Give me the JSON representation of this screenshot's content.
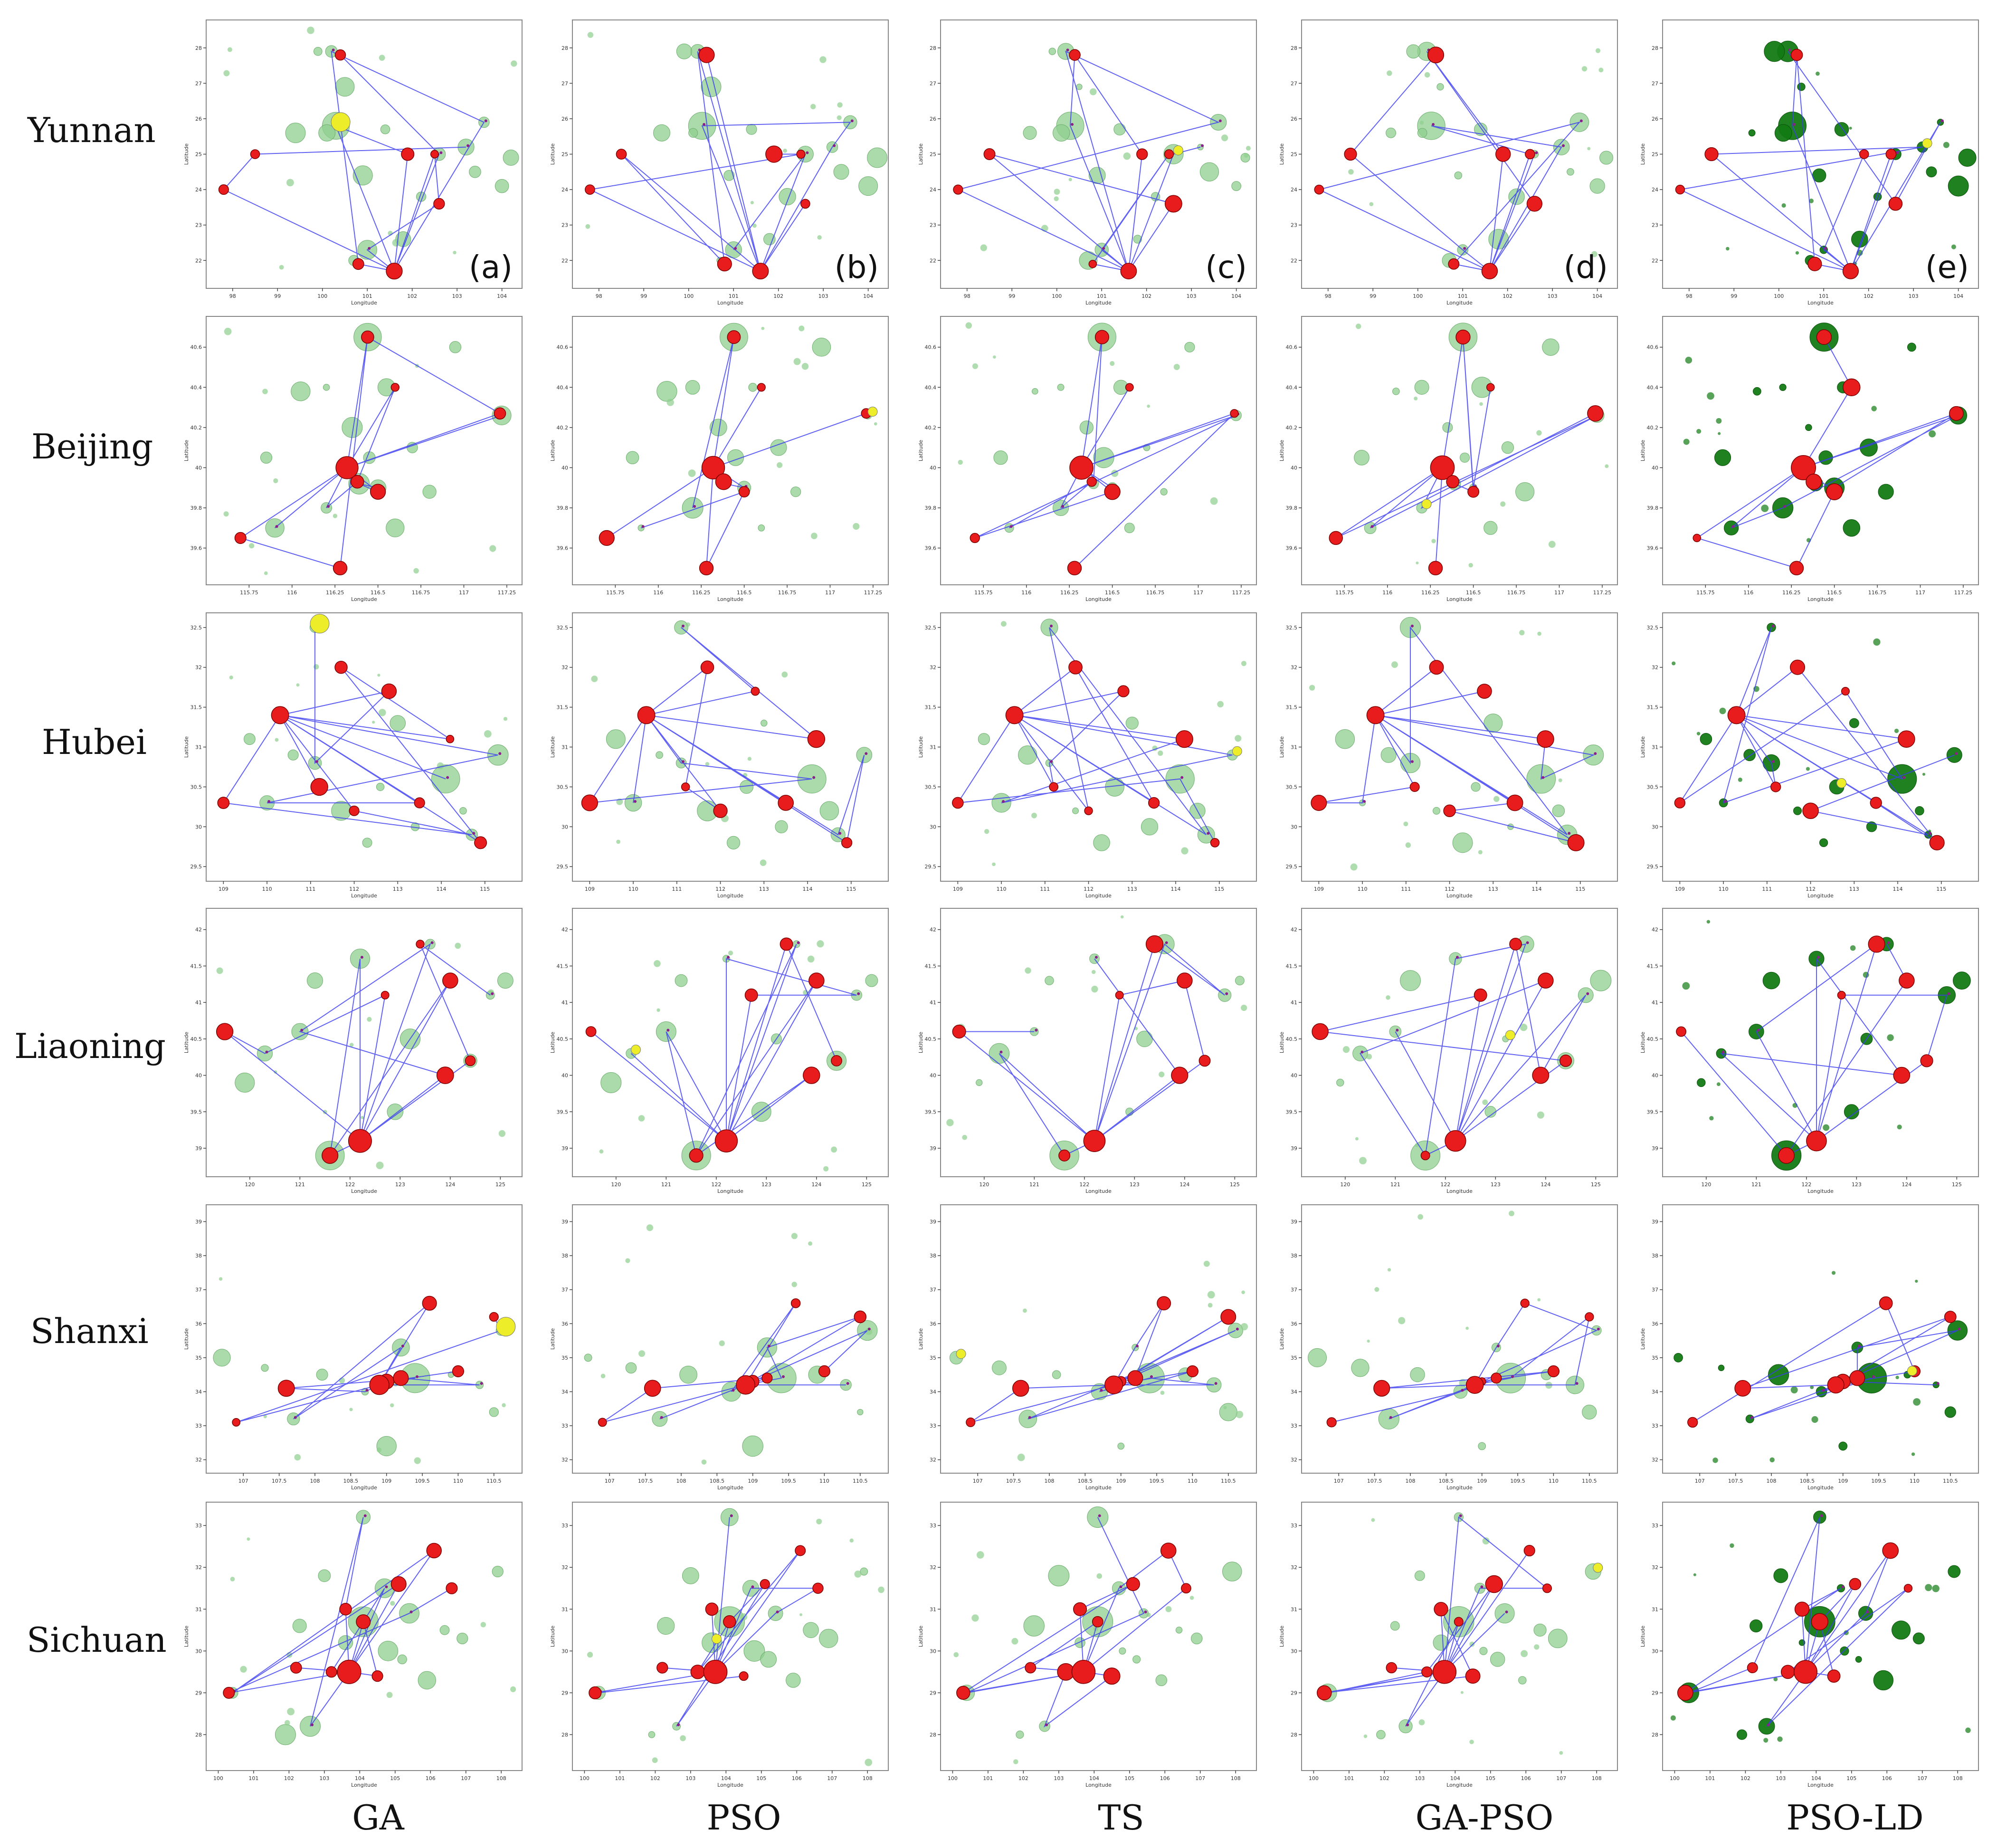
{
  "figure": {
    "row_labels": [
      "Yunnan",
      "Beijing",
      "Hubei",
      "Liaoning",
      "Shanxi",
      "Sichuan"
    ],
    "column_labels": [
      "GA",
      "PSO",
      "TS",
      "GA-PSO",
      "PSO-LD"
    ],
    "panel_letters": [
      "(a)",
      "(b)",
      "(c)",
      "(d)",
      "(e)"
    ],
    "axis_x_label": "Longitude",
    "axis_y_label": "Latitude",
    "colors": {
      "route": "#3a3af0",
      "depot": "#e81c1c",
      "customer": "#8fcf8f",
      "customer_dark": "#137a13",
      "highlight": "#eded2a",
      "frame": "#888888"
    }
  },
  "chart_data": {
    "type": "scatter",
    "description_of_series": [
      "route (line)",
      "depot (red circles)",
      "customer (green circles)",
      "highlight (yellow circles)"
    ],
    "provinces": [
      {
        "name": "Yunnan",
        "xlim": [
          97.6,
          104.3
        ],
        "ylim": [
          21.4,
          28.6
        ],
        "xticks": [
          98,
          99,
          100,
          101,
          102,
          103,
          104
        ],
        "yticks": [
          22,
          23,
          24,
          25,
          26,
          27,
          28
        ],
        "depots": [
          [
            100.8,
            21.9
          ],
          [
            101.6,
            21.7
          ],
          [
            102.6,
            23.6
          ],
          [
            102.5,
            25.0
          ],
          [
            101.9,
            25.0
          ],
          [
            100.4,
            27.8
          ],
          [
            98.5,
            25.0
          ],
          [
            97.8,
            24.0
          ]
        ],
        "customers": [
          [
            100.3,
            25.8
          ],
          [
            101.0,
            22.3
          ],
          [
            102.6,
            25.0
          ],
          [
            100.2,
            27.9
          ],
          [
            103.2,
            25.2
          ],
          [
            103.6,
            25.9
          ],
          [
            104.0,
            24.1
          ],
          [
            100.9,
            24.4
          ],
          [
            101.8,
            22.6
          ],
          [
            99.4,
            25.6
          ],
          [
            100.5,
            26.9
          ],
          [
            103.4,
            24.5
          ],
          [
            104.2,
            24.9
          ],
          [
            100.1,
            25.6
          ],
          [
            101.4,
            25.7
          ],
          [
            99.9,
            27.9
          ],
          [
            100.7,
            22.0
          ],
          [
            102.2,
            23.8
          ]
        ]
      },
      {
        "name": "Beijing",
        "xlim": [
          115.55,
          117.3
        ],
        "ylim": [
          39.45,
          40.72
        ],
        "xticks": [
          115.75,
          116.0,
          116.25,
          116.5,
          116.75,
          117.0,
          117.25
        ],
        "yticks": [
          39.6,
          39.8,
          40.0,
          40.2,
          40.4,
          40.6
        ],
        "depots": [
          [
            116.28,
            39.5
          ],
          [
            116.32,
            40.0
          ],
          [
            116.38,
            39.93
          ],
          [
            116.6,
            40.4
          ],
          [
            117.21,
            40.27
          ],
          [
            116.44,
            40.65
          ],
          [
            115.7,
            39.65
          ],
          [
            116.5,
            39.88
          ]
        ],
        "customers": [
          [
            116.44,
            40.65
          ],
          [
            116.5,
            39.9
          ],
          [
            117.22,
            40.26
          ],
          [
            116.39,
            39.92
          ],
          [
            116.2,
            39.8
          ],
          [
            115.9,
            39.7
          ],
          [
            116.7,
            40.1
          ],
          [
            116.55,
            40.4
          ],
          [
            116.35,
            40.2
          ],
          [
            116.8,
            39.88
          ],
          [
            116.05,
            40.38
          ],
          [
            116.6,
            39.7
          ],
          [
            116.45,
            40.05
          ],
          [
            116.2,
            40.4
          ],
          [
            115.85,
            40.05
          ],
          [
            116.95,
            40.6
          ]
        ]
      },
      {
        "name": "Hubei",
        "xlim": [
          108.8,
          115.7
        ],
        "ylim": [
          29.4,
          32.6
        ],
        "xticks": [
          109,
          110,
          111,
          112,
          113,
          114,
          115
        ],
        "yticks": [
          29.5,
          30.0,
          30.5,
          31.0,
          31.5,
          32.0,
          32.5
        ],
        "depots": [
          [
            109.0,
            30.3
          ],
          [
            110.3,
            31.4
          ],
          [
            111.7,
            32.0
          ],
          [
            112.8,
            31.7
          ],
          [
            114.2,
            31.1
          ],
          [
            114.9,
            29.8
          ],
          [
            111.2,
            30.5
          ],
          [
            112.0,
            30.2
          ],
          [
            113.5,
            30.3
          ]
        ],
        "customers": [
          [
            114.1,
            30.6
          ],
          [
            111.1,
            30.8
          ],
          [
            111.1,
            32.5
          ],
          [
            110.0,
            30.3
          ],
          [
            115.3,
            30.9
          ],
          [
            114.7,
            29.9
          ],
          [
            112.6,
            30.5
          ],
          [
            113.0,
            31.3
          ],
          [
            110.6,
            30.9
          ],
          [
            114.5,
            30.2
          ],
          [
            111.7,
            30.2
          ],
          [
            112.3,
            29.8
          ],
          [
            113.4,
            30.0
          ],
          [
            109.6,
            31.1
          ]
        ]
      },
      {
        "name": "Liaoning",
        "xlim": [
          119.3,
          125.3
        ],
        "ylim": [
          38.7,
          42.2
        ],
        "xticks": [
          120,
          121,
          122,
          123,
          124,
          125
        ],
        "yticks": [
          39.0,
          39.5,
          40.0,
          40.5,
          41.0,
          41.5,
          42.0
        ],
        "depots": [
          [
            121.6,
            38.9
          ],
          [
            122.2,
            39.1
          ],
          [
            122.7,
            41.1
          ],
          [
            123.4,
            41.8
          ],
          [
            124.0,
            41.3
          ],
          [
            124.4,
            40.2
          ],
          [
            119.5,
            40.6
          ],
          [
            123.9,
            40.0
          ]
        ],
        "customers": [
          [
            121.6,
            38.9
          ],
          [
            123.6,
            41.8
          ],
          [
            121.0,
            40.6
          ],
          [
            124.8,
            41.1
          ],
          [
            120.3,
            40.3
          ],
          [
            122.2,
            41.6
          ],
          [
            123.2,
            40.5
          ],
          [
            124.4,
            40.2
          ],
          [
            121.3,
            41.3
          ],
          [
            125.1,
            41.3
          ],
          [
            119.9,
            39.9
          ],
          [
            122.9,
            39.5
          ]
        ]
      },
      {
        "name": "Shanxi",
        "xlim": [
          106.6,
          110.8
        ],
        "ylim": [
          31.8,
          39.3
        ],
        "xticks": [
          107.0,
          107.5,
          108.0,
          108.5,
          109.0,
          109.5,
          110.0,
          110.5
        ],
        "yticks": [
          32,
          33,
          34,
          35,
          36,
          37,
          38,
          39
        ],
        "depots": [
          [
            109.0,
            34.3
          ],
          [
            108.9,
            34.2
          ],
          [
            109.2,
            34.4
          ],
          [
            109.6,
            36.6
          ],
          [
            110.0,
            34.6
          ],
          [
            106.9,
            33.1
          ],
          [
            110.5,
            36.2
          ],
          [
            107.6,
            34.1
          ]
        ],
        "customers": [
          [
            109.4,
            34.4
          ],
          [
            108.7,
            34.0
          ],
          [
            110.3,
            34.2
          ],
          [
            109.2,
            35.3
          ],
          [
            110.6,
            35.8
          ],
          [
            107.7,
            33.2
          ],
          [
            106.7,
            35.0
          ],
          [
            108.1,
            34.5
          ],
          [
            109.9,
            34.5
          ],
          [
            110.5,
            33.4
          ],
          [
            109.0,
            32.4
          ],
          [
            107.3,
            34.7
          ]
        ]
      },
      {
        "name": "Sichuan",
        "xlim": [
          99.9,
          108.4
        ],
        "ylim": [
          27.3,
          33.4
        ],
        "xticks": [
          100,
          101,
          102,
          103,
          104,
          105,
          106,
          107,
          108
        ],
        "yticks": [
          28,
          29,
          30,
          31,
          32,
          33
        ],
        "depots": [
          [
            103.2,
            29.5
          ],
          [
            103.7,
            29.5
          ],
          [
            104.1,
            30.7
          ],
          [
            103.6,
            31.0
          ],
          [
            105.1,
            31.6
          ],
          [
            106.1,
            32.4
          ],
          [
            100.3,
            29.0
          ],
          [
            102.2,
            29.6
          ],
          [
            104.5,
            29.4
          ],
          [
            106.6,
            31.5
          ]
        ],
        "customers": [
          [
            104.1,
            30.7
          ],
          [
            104.7,
            31.5
          ],
          [
            104.1,
            33.2
          ],
          [
            100.4,
            29.0
          ],
          [
            105.4,
            30.9
          ],
          [
            102.6,
            28.2
          ],
          [
            103.6,
            30.2
          ],
          [
            106.4,
            30.5
          ],
          [
            107.9,
            31.9
          ],
          [
            105.9,
            29.3
          ],
          [
            104.8,
            30.0
          ],
          [
            102.3,
            30.6
          ],
          [
            103.0,
            31.8
          ],
          [
            106.9,
            30.3
          ],
          [
            101.9,
            28.0
          ],
          [
            105.2,
            29.8
          ]
        ]
      }
    ]
  }
}
